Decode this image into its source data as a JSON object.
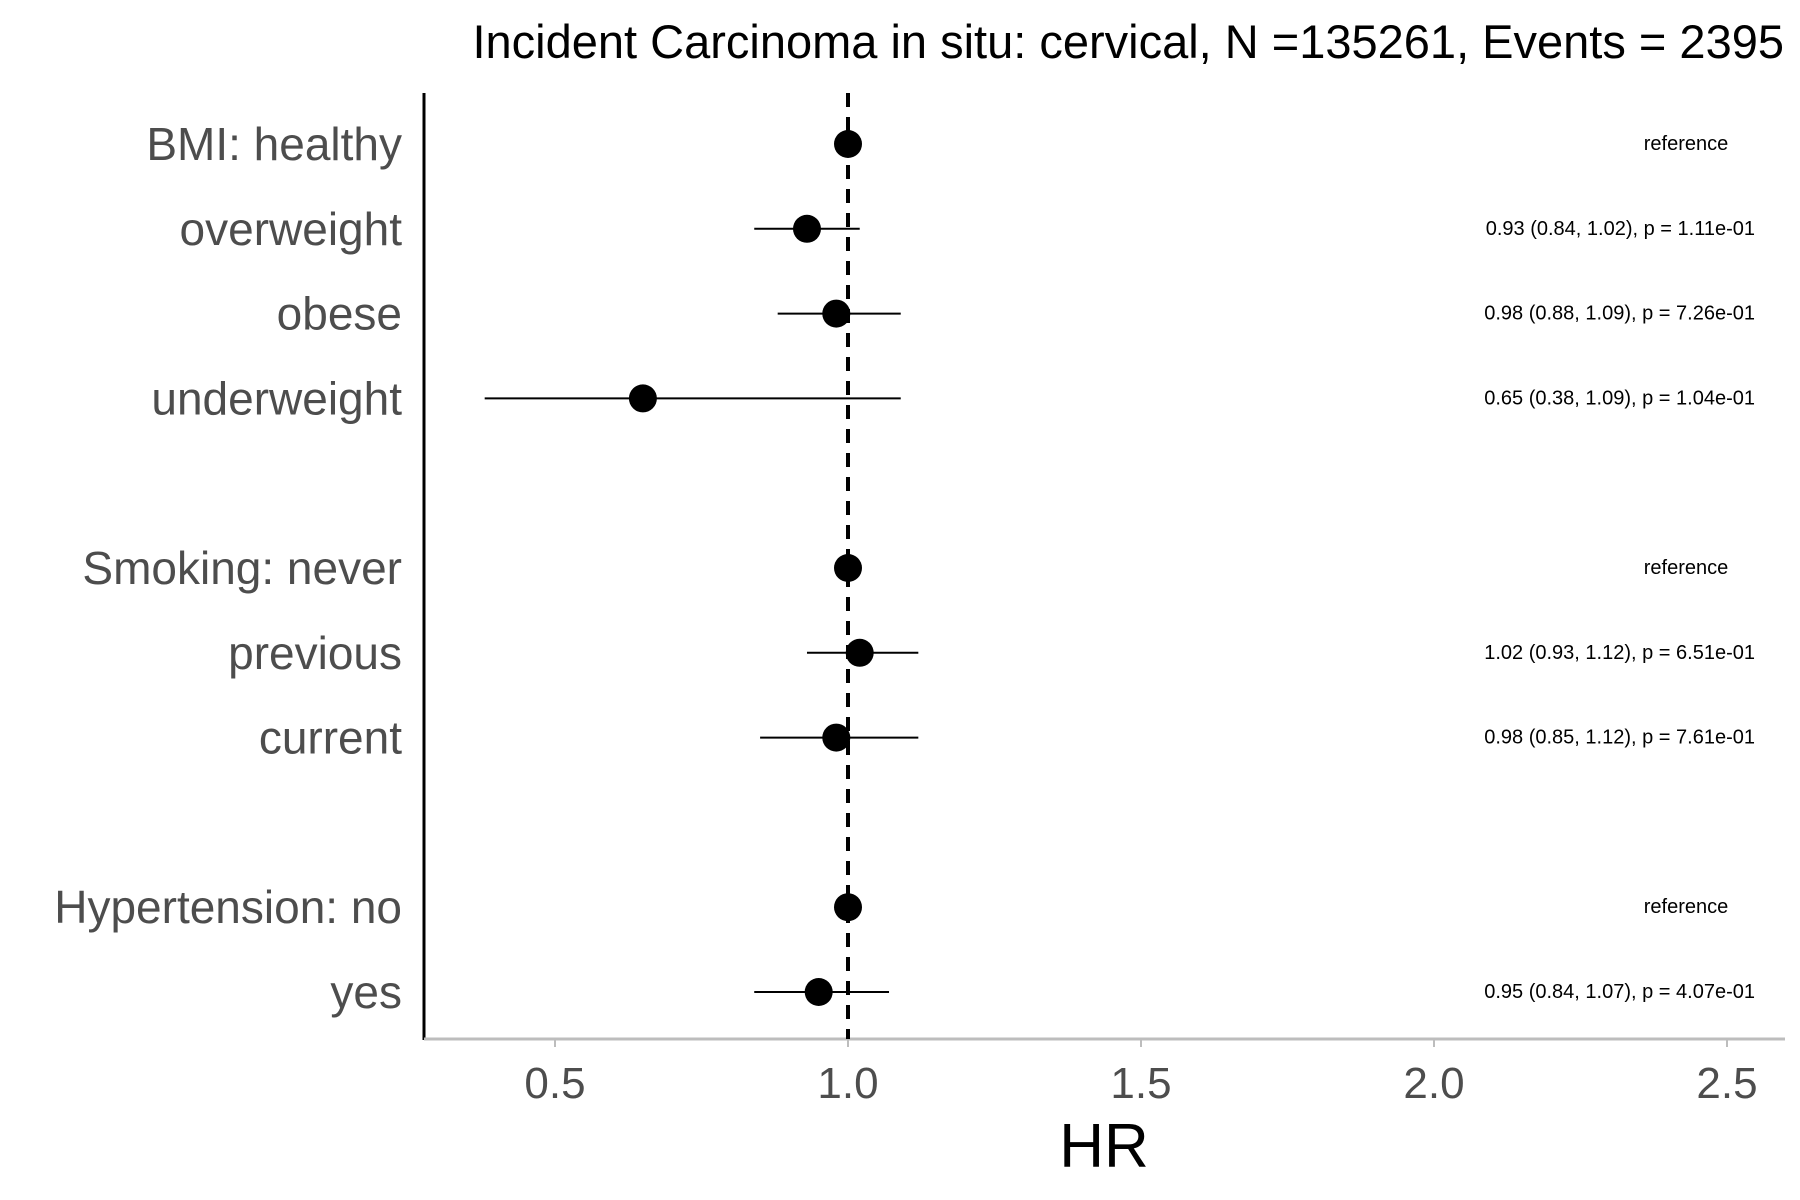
{
  "chart_data": {
    "type": "forest",
    "title": "Incident Carcinoma in situ: cervical, N =135261, Events = 2395",
    "xlabel": "HR",
    "ylabel": "",
    "xlim": [
      0.3,
      2.6
    ],
    "xticks": [
      0.5,
      1.0,
      1.5,
      2.0,
      2.5
    ],
    "xtick_labels": [
      "0.5",
      "1.0",
      "1.5",
      "2.0",
      "2.5"
    ],
    "reference_line": 1.0,
    "grid": false,
    "rows": [
      {
        "label": "BMI: healthy",
        "hr": 1.0,
        "lower": null,
        "upper": null,
        "annotation": "reference"
      },
      {
        "label": "overweight",
        "hr": 0.93,
        "lower": 0.84,
        "upper": 1.02,
        "annotation": "0.93 (0.84, 1.02), p = 1.11e-01"
      },
      {
        "label": "obese",
        "hr": 0.98,
        "lower": 0.88,
        "upper": 1.09,
        "annotation": "0.98 (0.88, 1.09), p = 7.26e-01"
      },
      {
        "label": "underweight",
        "hr": 0.65,
        "lower": 0.38,
        "upper": 1.09,
        "annotation": "0.65 (0.38, 1.09), p = 1.04e-01"
      },
      {
        "label": "",
        "hr": null,
        "lower": null,
        "upper": null,
        "annotation": ""
      },
      {
        "label": "Smoking: never",
        "hr": 1.0,
        "lower": null,
        "upper": null,
        "annotation": "reference"
      },
      {
        "label": "previous",
        "hr": 1.02,
        "lower": 0.93,
        "upper": 1.12,
        "annotation": "1.02 (0.93, 1.12), p = 6.51e-01"
      },
      {
        "label": "current",
        "hr": 0.98,
        "lower": 0.85,
        "upper": 1.12,
        "annotation": "0.98 (0.85, 1.12), p = 7.61e-01"
      },
      {
        "label": "",
        "hr": null,
        "lower": null,
        "upper": null,
        "annotation": ""
      },
      {
        "label": "Hypertension: no",
        "hr": 1.0,
        "lower": null,
        "upper": null,
        "annotation": "reference"
      },
      {
        "label": "yes",
        "hr": 0.95,
        "lower": 0.84,
        "upper": 1.07,
        "annotation": "0.95 (0.84, 1.07), p = 4.07e-01"
      }
    ]
  }
}
